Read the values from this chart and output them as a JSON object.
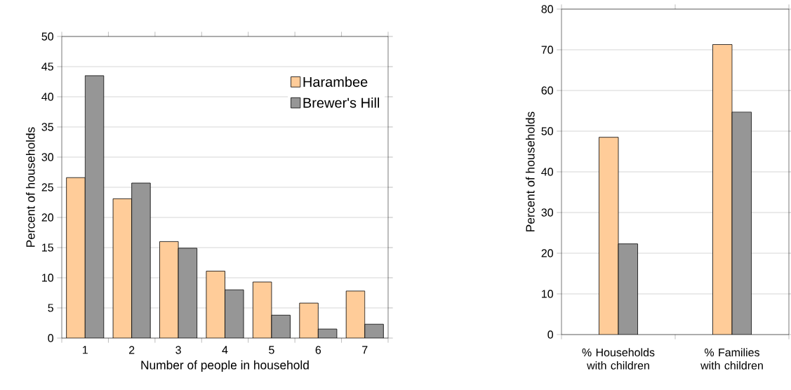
{
  "chart_data": [
    {
      "type": "bar",
      "categories": [
        "1",
        "2",
        "3",
        "4",
        "5",
        "6",
        "7"
      ],
      "xlabel": "Number of people in household",
      "ylabel": "Percent of households",
      "ylim": [
        0,
        50
      ],
      "yticks": [
        0,
        5,
        10,
        15,
        20,
        25,
        30,
        35,
        40,
        45,
        50
      ],
      "grid": "y",
      "legend": "top right",
      "series": [
        {
          "name": "Harambee",
          "color": "#ffcc99",
          "values": [
            26.6,
            23.1,
            16.0,
            11.1,
            9.3,
            5.8,
            7.8
          ]
        },
        {
          "name": "Brewer's Hill",
          "color": "#969696",
          "values": [
            43.5,
            25.7,
            14.9,
            8.0,
            3.8,
            1.5,
            2.3
          ]
        }
      ]
    },
    {
      "type": "bar",
      "categories": [
        "% Households with children",
        "% Families with children"
      ],
      "ylabel": "Percent of households",
      "ylim": [
        0,
        80
      ],
      "yticks": [
        0,
        10,
        20,
        30,
        40,
        50,
        60,
        70,
        80
      ],
      "grid": "y",
      "series": [
        {
          "color": "#ffcc99",
          "values": [
            48.5,
            71.3
          ]
        },
        {
          "color": "#969696",
          "values": [
            22.3,
            54.7
          ]
        }
      ]
    }
  ]
}
